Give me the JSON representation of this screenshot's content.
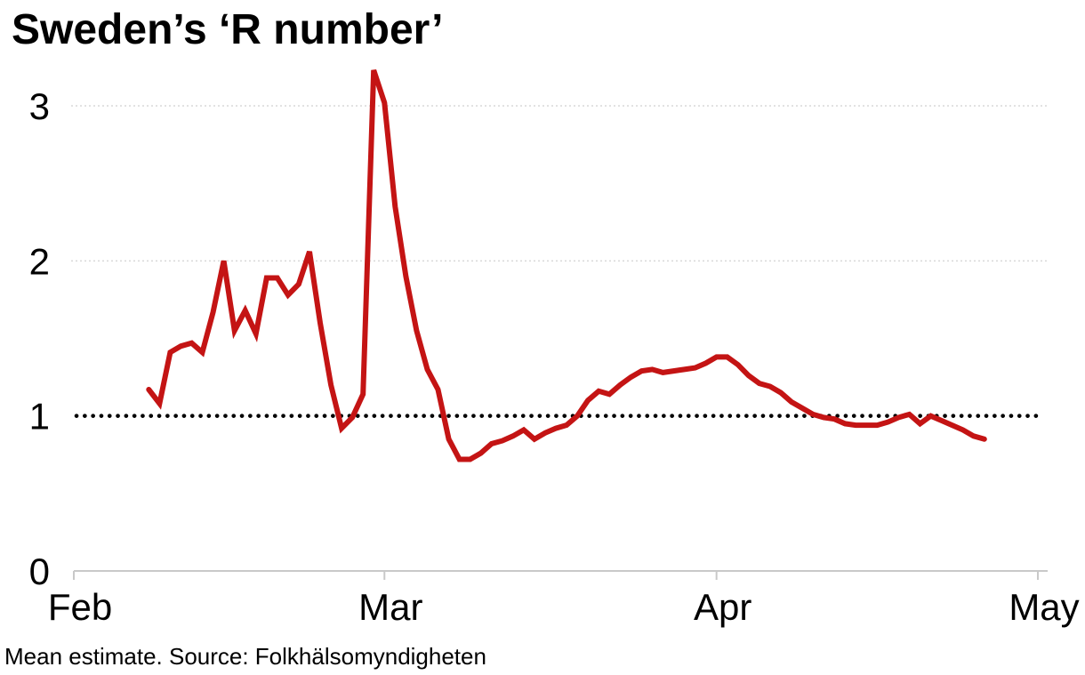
{
  "header": {
    "title": "Sweden’s ‘R number’"
  },
  "footer": {
    "note": "Mean estimate. Source: Folkhälsomyndigheten"
  },
  "colors": {
    "line": "#c41414",
    "grid_light": "#d9d9d9",
    "axis": "#c9c9c9",
    "reference_line": "#000000",
    "text": "#000000",
    "background": "#ffffff"
  },
  "chart_data": {
    "type": "line",
    "title": "Sweden’s ‘R number’",
    "footnote": "Mean estimate. Source: Folkhälsomyndigheten",
    "xlabel": "",
    "ylabel": "",
    "ylim": [
      0,
      3.3
    ],
    "grid": "horizontal-dotted",
    "legend": "none",
    "y_ticks": [
      {
        "label": "0",
        "value": 0,
        "style": "baseline"
      },
      {
        "label": "1",
        "value": 1,
        "style": "bold-black-dotted"
      },
      {
        "label": "2",
        "value": 2,
        "style": "light-dotted"
      },
      {
        "label": "3",
        "value": 3,
        "style": "light-dotted"
      }
    ],
    "x_ticks": [
      {
        "label": "Feb"
      },
      {
        "label": "Mar"
      },
      {
        "label": "Apr"
      },
      {
        "label": "May"
      }
    ],
    "reference_line": {
      "value": 1
    },
    "series": [
      {
        "name": "R number (mean estimate)",
        "points": [
          {
            "date": "Feb 8",
            "value": 1.17
          },
          {
            "date": "Feb 9",
            "value": 1.08
          },
          {
            "date": "Feb 10",
            "value": 1.41
          },
          {
            "date": "Feb 11",
            "value": 1.45
          },
          {
            "date": "Feb 12",
            "value": 1.47
          },
          {
            "date": "Feb 13",
            "value": 1.41
          },
          {
            "date": "Feb 14",
            "value": 1.67
          },
          {
            "date": "Feb 15",
            "value": 2.0
          },
          {
            "date": "Feb 16",
            "value": 1.55
          },
          {
            "date": "Feb 17",
            "value": 1.68
          },
          {
            "date": "Feb 18",
            "value": 1.53
          },
          {
            "date": "Feb 19",
            "value": 1.89
          },
          {
            "date": "Feb 20",
            "value": 1.89
          },
          {
            "date": "Feb 21",
            "value": 1.78
          },
          {
            "date": "Feb 22",
            "value": 1.85
          },
          {
            "date": "Feb 23",
            "value": 2.06
          },
          {
            "date": "Feb 24",
            "value": 1.6
          },
          {
            "date": "Feb 25",
            "value": 1.2
          },
          {
            "date": "Feb 26",
            "value": 0.92
          },
          {
            "date": "Feb 27",
            "value": 0.99
          },
          {
            "date": "Feb 28",
            "value": 1.14
          },
          {
            "date": "Feb 29",
            "value": 3.23
          },
          {
            "date": "Mar 1",
            "value": 3.02
          },
          {
            "date": "Mar 2",
            "value": 2.35
          },
          {
            "date": "Mar 3",
            "value": 1.9
          },
          {
            "date": "Mar 4",
            "value": 1.55
          },
          {
            "date": "Mar 5",
            "value": 1.3
          },
          {
            "date": "Mar 6",
            "value": 1.17
          },
          {
            "date": "Mar 7",
            "value": 0.85
          },
          {
            "date": "Mar 8",
            "value": 0.72
          },
          {
            "date": "Mar 9",
            "value": 0.72
          },
          {
            "date": "Mar 10",
            "value": 0.76
          },
          {
            "date": "Mar 11",
            "value": 0.82
          },
          {
            "date": "Mar 12",
            "value": 0.84
          },
          {
            "date": "Mar 13",
            "value": 0.87
          },
          {
            "date": "Mar 14",
            "value": 0.91
          },
          {
            "date": "Mar 15",
            "value": 0.85
          },
          {
            "date": "Mar 16",
            "value": 0.89
          },
          {
            "date": "Mar 17",
            "value": 0.92
          },
          {
            "date": "Mar 18",
            "value": 0.94
          },
          {
            "date": "Mar 19",
            "value": 1.0
          },
          {
            "date": "Mar 20",
            "value": 1.1
          },
          {
            "date": "Mar 21",
            "value": 1.16
          },
          {
            "date": "Mar 22",
            "value": 1.14
          },
          {
            "date": "Mar 23",
            "value": 1.2
          },
          {
            "date": "Mar 24",
            "value": 1.25
          },
          {
            "date": "Mar 25",
            "value": 1.29
          },
          {
            "date": "Mar 26",
            "value": 1.3
          },
          {
            "date": "Mar 27",
            "value": 1.28
          },
          {
            "date": "Mar 28",
            "value": 1.29
          },
          {
            "date": "Mar 29",
            "value": 1.3
          },
          {
            "date": "Mar 30",
            "value": 1.31
          },
          {
            "date": "Mar 31",
            "value": 1.34
          },
          {
            "date": "Apr 1",
            "value": 1.38
          },
          {
            "date": "Apr 2",
            "value": 1.38
          },
          {
            "date": "Apr 3",
            "value": 1.33
          },
          {
            "date": "Apr 4",
            "value": 1.26
          },
          {
            "date": "Apr 5",
            "value": 1.21
          },
          {
            "date": "Apr 6",
            "value": 1.19
          },
          {
            "date": "Apr 7",
            "value": 1.15
          },
          {
            "date": "Apr 8",
            "value": 1.09
          },
          {
            "date": "Apr 9",
            "value": 1.05
          },
          {
            "date": "Apr 10",
            "value": 1.01
          },
          {
            "date": "Apr 11",
            "value": 0.99
          },
          {
            "date": "Apr 12",
            "value": 0.98
          },
          {
            "date": "Apr 13",
            "value": 0.95
          },
          {
            "date": "Apr 14",
            "value": 0.94
          },
          {
            "date": "Apr 15",
            "value": 0.94
          },
          {
            "date": "Apr 16",
            "value": 0.94
          },
          {
            "date": "Apr 17",
            "value": 0.96
          },
          {
            "date": "Apr 18",
            "value": 0.99
          },
          {
            "date": "Apr 19",
            "value": 1.01
          },
          {
            "date": "Apr 20",
            "value": 0.95
          },
          {
            "date": "Apr 21",
            "value": 1.0
          },
          {
            "date": "Apr 22",
            "value": 0.97
          },
          {
            "date": "Apr 23",
            "value": 0.94
          },
          {
            "date": "Apr 24",
            "value": 0.91
          },
          {
            "date": "Apr 25",
            "value": 0.87
          },
          {
            "date": "Apr 26",
            "value": 0.85
          }
        ]
      }
    ]
  }
}
